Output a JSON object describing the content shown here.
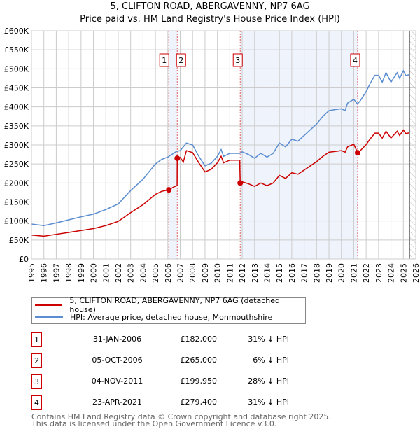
{
  "chart_data": {
    "type": "line",
    "title": "5, CLIFTON ROAD, ABERGAVENNY, NP7 6AG",
    "subtitle": "Price paid vs. HM Land Registry's House Price Index (HPI)",
    "xlim": [
      1995,
      2026
    ],
    "ylim": [
      0,
      600000
    ],
    "grid": true,
    "y_ticks": [
      "£0",
      "£50K",
      "£100K",
      "£150K",
      "£200K",
      "£250K",
      "£300K",
      "£350K",
      "£400K",
      "£450K",
      "£500K",
      "£550K",
      "£600K"
    ],
    "x_ticks": [
      "1995",
      "1996",
      "1997",
      "1998",
      "1999",
      "2000",
      "2001",
      "2002",
      "2003",
      "2004",
      "2005",
      "2006",
      "2007",
      "2008",
      "2009",
      "2010",
      "2011",
      "2012",
      "2013",
      "2014",
      "2015",
      "2016",
      "2017",
      "2018",
      "2019",
      "2020",
      "2021",
      "2022",
      "2023",
      "2024",
      "2025",
      "2026"
    ],
    "legend_placement": "below",
    "series": [
      {
        "name": "5, CLIFTON ROAD, ABERGAVENNY, NP7 6AG (detached house)",
        "color": "#cc0000",
        "x": [
          1995,
          1996,
          1997,
          1998,
          1999,
          2000,
          2001,
          2002,
          2003,
          2004,
          2005,
          2005.5,
          2006.08,
          2006.5,
          2006.75,
          2006.76,
          2007,
          2007.25,
          2007.5,
          2008,
          2008.5,
          2009,
          2009.5,
          2010,
          2010.3,
          2010.5,
          2011,
          2011.8,
          2011.84,
          2012,
          2012.5,
          2013,
          2013.5,
          2014,
          2014.5,
          2015,
          2015.5,
          2016,
          2016.5,
          2017,
          2017.5,
          2018,
          2018.5,
          2019,
          2019.5,
          2020,
          2020.3,
          2020.5,
          2021,
          2021.31,
          2021.5,
          2022,
          2022.3,
          2022.7,
          2023,
          2023.3,
          2023.6,
          2024,
          2024.5,
          2024.7,
          2025,
          2025.2,
          2025.5
        ],
        "y": [
          63000,
          60000,
          65000,
          70000,
          75000,
          80000,
          88000,
          99000,
          122000,
          143000,
          170000,
          178000,
          182000,
          190000,
          193000,
          265000,
          267000,
          255000,
          285000,
          280000,
          253000,
          229000,
          236000,
          253000,
          270000,
          253000,
          260000,
          260000,
          199950,
          203000,
          198000,
          191000,
          200000,
          193000,
          200000,
          220000,
          212000,
          227000,
          223000,
          234000,
          245000,
          256000,
          270000,
          281000,
          283000,
          285000,
          281000,
          295000,
          302000,
          279400,
          284000,
          301000,
          315000,
          331000,
          331000,
          318000,
          336000,
          318000,
          336000,
          325000,
          339000,
          330000,
          332000
        ]
      },
      {
        "name": "HPI: Average price, detached house, Monmouthshire",
        "color": "#5b8dd0",
        "x": [
          1995,
          1996,
          1997,
          1998,
          1999,
          2000,
          2001,
          2002,
          2003,
          2004,
          2005,
          2005.5,
          2006,
          2006.7,
          2007,
          2007.5,
          2008,
          2008.5,
          2009,
          2009.5,
          2010,
          2010.3,
          2010.5,
          2011,
          2011.8,
          2012,
          2012.5,
          2013,
          2013.5,
          2014,
          2014.5,
          2015,
          2015.5,
          2016,
          2016.5,
          2017,
          2017.5,
          2018,
          2018.5,
          2019,
          2019.5,
          2020,
          2020.3,
          2020.5,
          2021,
          2021.3,
          2021.5,
          2022,
          2022.3,
          2022.7,
          2023,
          2023.3,
          2023.6,
          2024,
          2024.5,
          2024.7,
          2025,
          2025.2,
          2025.5
        ],
        "y": [
          92000,
          88000,
          95000,
          103000,
          111000,
          118000,
          130000,
          145000,
          180000,
          210000,
          250000,
          262000,
          268000,
          283000,
          285000,
          305000,
          300000,
          270000,
          245000,
          252000,
          270000,
          288000,
          270000,
          278000,
          278000,
          282000,
          275000,
          265000,
          278000,
          268000,
          278000,
          305000,
          295000,
          315000,
          310000,
          325000,
          340000,
          355000,
          375000,
          390000,
          393000,
          395000,
          390000,
          410000,
          420000,
          408000,
          415000,
          440000,
          460000,
          483000,
          483000,
          465000,
          490000,
          465000,
          490000,
          475000,
          495000,
          482000,
          485000
        ]
      }
    ],
    "sales": [
      {
        "label": "1",
        "x": 2006.08,
        "date": "31-JAN-2006",
        "price": 182000,
        "price_text": "£182,000",
        "hpi_text": "31% ↓ HPI"
      },
      {
        "label": "2",
        "x": 2006.76,
        "date": "05-OCT-2006",
        "price": 265000,
        "price_text": "£265,000",
        "hpi_text": "6% ↓ HPI"
      },
      {
        "label": "3",
        "x": 2011.84,
        "date": "04-NOV-2011",
        "price": 199950,
        "price_text": "£199,950",
        "hpi_text": "28% ↓ HPI"
      },
      {
        "label": "4",
        "x": 2021.31,
        "date": "23-APR-2021",
        "price": 279400,
        "price_text": "£279,400",
        "hpi_text": "31% ↓ HPI"
      }
    ],
    "shaded_ranges": [
      [
        2006.08,
        2006.76
      ],
      [
        2011.84,
        2021.31
      ]
    ],
    "hatched_from": 2025.5
  },
  "footer": {
    "line1": "Contains HM Land Registry data © Crown copyright and database right 2025.",
    "line2": "This data is licensed under the Open Government Licence v3.0."
  }
}
